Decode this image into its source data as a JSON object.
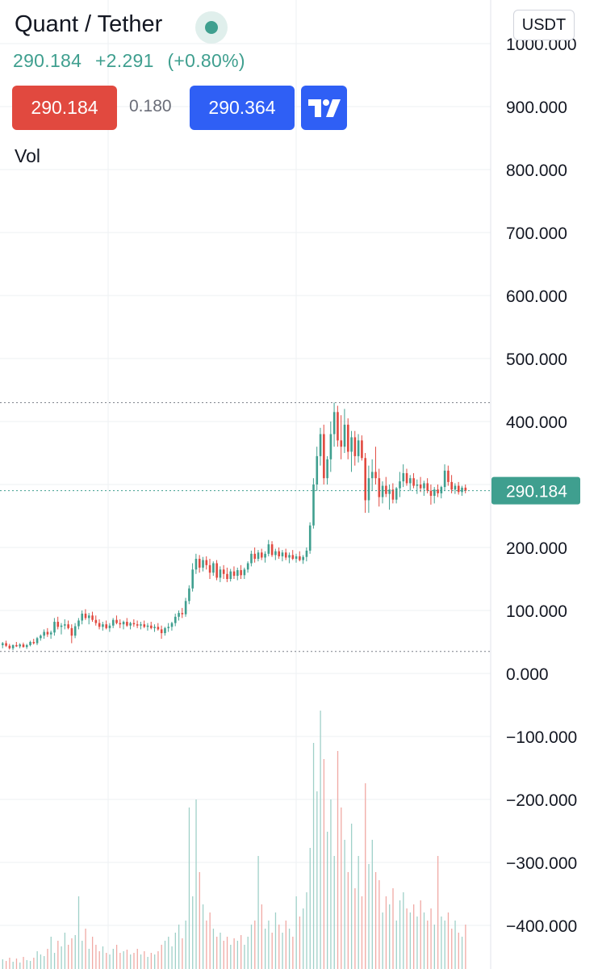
{
  "header": {
    "title": "Quant / Tether",
    "last_price": "290.184",
    "change": "+2.291",
    "change_pct": "(+0.80%)",
    "sell_price": "290.184",
    "spread": "0.180",
    "buy_price": "290.364",
    "vol_label": "Vol",
    "currency": "USDT",
    "logo_icon": "tradingview-logo-icon"
  },
  "colors": {
    "up": "#3f9f8f",
    "down": "#e1493f",
    "sell_button": "#e1493f",
    "buy_button": "#2f5ff5"
  },
  "chart_data": {
    "type": "candlestick",
    "y_axis": {
      "position": "right",
      "ylim": [
        -460,
        1000
      ],
      "tick_labels": [
        "1000.000",
        "900.000",
        "800.000",
        "700.000",
        "600.000",
        "500.000",
        "400.000",
        "300.000",
        "200.000",
        "100.000",
        "0.000",
        "−100.000",
        "−200.000",
        "−300.000",
        "−400.000"
      ],
      "tick_values": [
        1000,
        900,
        800,
        700,
        600,
        500,
        400,
        300,
        200,
        100,
        0,
        -100,
        -200,
        -300,
        -400
      ]
    },
    "last_price_marker": {
      "value": 290.184,
      "label": "290.184"
    },
    "high_line": 430,
    "low_line": 35,
    "grid": true,
    "volume_panel": true,
    "candles": [
      [
        45,
        50,
        40,
        48
      ],
      [
        48,
        52,
        42,
        44
      ],
      [
        44,
        47,
        38,
        40
      ],
      [
        40,
        46,
        37,
        45
      ],
      [
        45,
        50,
        42,
        43
      ],
      [
        43,
        48,
        40,
        46
      ],
      [
        46,
        49,
        41,
        42
      ],
      [
        42,
        47,
        39,
        45
      ],
      [
        45,
        52,
        43,
        50
      ],
      [
        50,
        55,
        46,
        48
      ],
      [
        48,
        58,
        45,
        56
      ],
      [
        56,
        62,
        52,
        60
      ],
      [
        60,
        70,
        55,
        66
      ],
      [
        66,
        72,
        58,
        62
      ],
      [
        62,
        68,
        55,
        65
      ],
      [
        65,
        88,
        60,
        82
      ],
      [
        82,
        90,
        70,
        74
      ],
      [
        74,
        80,
        62,
        76
      ],
      [
        76,
        86,
        70,
        78
      ],
      [
        78,
        84,
        70,
        72
      ],
      [
        72,
        78,
        48,
        60
      ],
      [
        60,
        80,
        56,
        75
      ],
      [
        75,
        88,
        70,
        84
      ],
      [
        84,
        100,
        78,
        95
      ],
      [
        95,
        102,
        85,
        88
      ],
      [
        88,
        96,
        78,
        92
      ],
      [
        92,
        98,
        82,
        85
      ],
      [
        85,
        92,
        76,
        80
      ],
      [
        80,
        86,
        70,
        74
      ],
      [
        74,
        82,
        68,
        78
      ],
      [
        78,
        84,
        70,
        72
      ],
      [
        72,
        80,
        66,
        76
      ],
      [
        76,
        88,
        72,
        85
      ],
      [
        85,
        92,
        78,
        80
      ],
      [
        80,
        86,
        72,
        78
      ],
      [
        78,
        84,
        70,
        82
      ],
      [
        82,
        88,
        74,
        76
      ],
      [
        76,
        82,
        70,
        80
      ],
      [
        80,
        86,
        74,
        78
      ],
      [
        78,
        84,
        72,
        76
      ],
      [
        76,
        82,
        70,
        78
      ],
      [
        78,
        84,
        72,
        74
      ],
      [
        74,
        80,
        68,
        76
      ],
      [
        76,
        82,
        70,
        72
      ],
      [
        72,
        78,
        66,
        74
      ],
      [
        74,
        80,
        68,
        70
      ],
      [
        70,
        76,
        55,
        64
      ],
      [
        64,
        74,
        60,
        72
      ],
      [
        72,
        80,
        66,
        74
      ],
      [
        74,
        82,
        68,
        80
      ],
      [
        80,
        95,
        75,
        90
      ],
      [
        90,
        100,
        84,
        96
      ],
      [
        96,
        104,
        88,
        94
      ],
      [
        94,
        120,
        90,
        115
      ],
      [
        115,
        140,
        110,
        135
      ],
      [
        135,
        175,
        130,
        165
      ],
      [
        165,
        190,
        158,
        182
      ],
      [
        182,
        188,
        160,
        168
      ],
      [
        168,
        185,
        162,
        180
      ],
      [
        180,
        186,
        165,
        172
      ],
      [
        172,
        182,
        150,
        160
      ],
      [
        160,
        178,
        155,
        175
      ],
      [
        175,
        180,
        148,
        152
      ],
      [
        152,
        170,
        145,
        165
      ],
      [
        165,
        172,
        150,
        158
      ],
      [
        158,
        168,
        145,
        150
      ],
      [
        150,
        166,
        146,
        162
      ],
      [
        162,
        170,
        150,
        155
      ],
      [
        155,
        168,
        148,
        164
      ],
      [
        164,
        172,
        150,
        156
      ],
      [
        156,
        168,
        150,
        165
      ],
      [
        165,
        178,
        160,
        175
      ],
      [
        175,
        195,
        170,
        190
      ],
      [
        190,
        200,
        176,
        182
      ],
      [
        182,
        196,
        178,
        192
      ],
      [
        192,
        198,
        180,
        184
      ],
      [
        184,
        194,
        176,
        190
      ],
      [
        190,
        212,
        186,
        205
      ],
      [
        205,
        210,
        185,
        188
      ],
      [
        188,
        198,
        180,
        194
      ],
      [
        194,
        200,
        182,
        186
      ],
      [
        186,
        196,
        178,
        192
      ],
      [
        192,
        198,
        180,
        184
      ],
      [
        184,
        192,
        175,
        188
      ],
      [
        188,
        196,
        180,
        182
      ],
      [
        182,
        190,
        176,
        186
      ],
      [
        186,
        194,
        178,
        180
      ],
      [
        180,
        188,
        174,
        185
      ],
      [
        185,
        200,
        178,
        195
      ],
      [
        195,
        240,
        190,
        235
      ],
      [
        235,
        310,
        230,
        300
      ],
      [
        300,
        360,
        290,
        345
      ],
      [
        345,
        390,
        330,
        380
      ],
      [
        380,
        395,
        300,
        310
      ],
      [
        310,
        345,
        300,
        340
      ],
      [
        340,
        400,
        320,
        380
      ],
      [
        380,
        430,
        360,
        415
      ],
      [
        415,
        425,
        360,
        370
      ],
      [
        370,
        410,
        340,
        360
      ],
      [
        360,
        420,
        350,
        395
      ],
      [
        395,
        405,
        340,
        352
      ],
      [
        352,
        385,
        320,
        375
      ],
      [
        375,
        385,
        330,
        345
      ],
      [
        345,
        380,
        335,
        370
      ],
      [
        370,
        378,
        338,
        342
      ],
      [
        342,
        350,
        255,
        275
      ],
      [
        275,
        330,
        255,
        310
      ],
      [
        310,
        340,
        290,
        320
      ],
      [
        320,
        360,
        300,
        310
      ],
      [
        310,
        325,
        265,
        280
      ],
      [
        280,
        305,
        270,
        298
      ],
      [
        298,
        312,
        280,
        285
      ],
      [
        285,
        300,
        260,
        292
      ],
      [
        292,
        302,
        270,
        276
      ],
      [
        276,
        296,
        270,
        294
      ],
      [
        294,
        320,
        280,
        305
      ],
      [
        305,
        332,
        296,
        318
      ],
      [
        318,
        325,
        298,
        302
      ],
      [
        302,
        315,
        290,
        310
      ],
      [
        310,
        318,
        294,
        298
      ],
      [
        298,
        308,
        285,
        300
      ],
      [
        300,
        312,
        288,
        294
      ],
      [
        294,
        306,
        282,
        302
      ],
      [
        302,
        310,
        286,
        290
      ],
      [
        290,
        300,
        268,
        282
      ],
      [
        282,
        296,
        270,
        292
      ],
      [
        292,
        300,
        280,
        286
      ],
      [
        286,
        298,
        278,
        296
      ],
      [
        296,
        332,
        290,
        322
      ],
      [
        322,
        330,
        298,
        304
      ],
      [
        304,
        315,
        286,
        292
      ],
      [
        292,
        302,
        285,
        298
      ],
      [
        298,
        304,
        284,
        288
      ],
      [
        288,
        298,
        282,
        295
      ],
      [
        295,
        300,
        286,
        290
      ]
    ],
    "volume": [
      12,
      10,
      14,
      9,
      13,
      8,
      15,
      11,
      10,
      14,
      22,
      18,
      16,
      25,
      40,
      20,
      35,
      28,
      45,
      30,
      38,
      42,
      90,
      35,
      50,
      25,
      40,
      30,
      22,
      28,
      20,
      18,
      25,
      30,
      20,
      22,
      24,
      18,
      20,
      25,
      18,
      22,
      15,
      20,
      18,
      22,
      30,
      35,
      40,
      28,
      45,
      55,
      38,
      60,
      200,
      90,
      210,
      120,
      80,
      60,
      70,
      50,
      40,
      45,
      35,
      40,
      30,
      38,
      35,
      42,
      30,
      40,
      55,
      60,
      140,
      80,
      50,
      60,
      45,
      70,
      55,
      45,
      60,
      50,
      40,
      90,
      65,
      75,
      95,
      150,
      280,
      220,
      320,
      260,
      170,
      210,
      140,
      270,
      200,
      160,
      120,
      180,
      100,
      140,
      90,
      230,
      130,
      160,
      120,
      110,
      70,
      90,
      80,
      100,
      60,
      85,
      95,
      75,
      70,
      80,
      65,
      85,
      70,
      60,
      75,
      55,
      140,
      65,
      60,
      70,
      50,
      60,
      45,
      40,
      55
    ]
  }
}
